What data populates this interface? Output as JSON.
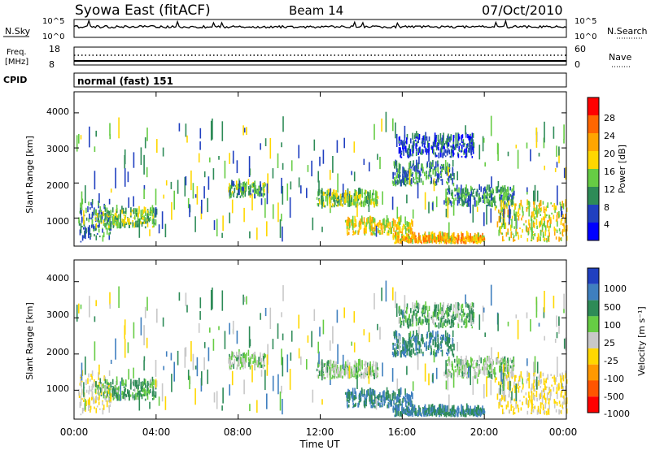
{
  "header": {
    "title": "Syowa East (fitACF)",
    "beam": "Beam 14",
    "date": "07/Oct/2010"
  },
  "noise_panel": {
    "left_label": "N.Sky",
    "right_label": "N.Search",
    "left_ticks": [
      "10^5",
      "10^0"
    ],
    "right_ticks": [
      "10^5",
      "10^0"
    ]
  },
  "freq_panel": {
    "left_label_line1": "Freq.",
    "left_label_line2": "[MHz]",
    "right_label": "Nave",
    "left_ticks": [
      "18",
      "8"
    ],
    "right_ticks": [
      "60",
      "0"
    ]
  },
  "cpid_panel": {
    "label": "CPID",
    "text": "normal (fast) 151"
  },
  "power_panel": {
    "ylabel": "Slant Range [km]",
    "yticks": [
      "4000",
      "3000",
      "2000",
      "1000"
    ],
    "colorbar_label": "Power [dB]",
    "colorbar_ticks": [
      "28",
      "24",
      "20",
      "16",
      "12",
      "8",
      "4"
    ],
    "colors": [
      "#0000ff",
      "#2040c0",
      "#2e8b57",
      "#66cc44",
      "#ffd700",
      "#ffa500",
      "#ff6600",
      "#ff0000"
    ]
  },
  "velocity_panel": {
    "ylabel": "Slant Range [km]",
    "yticks": [
      "4000",
      "3000",
      "2000",
      "1000"
    ],
    "colorbar_label": "Velocity [m s⁻¹]",
    "colorbar_ticks": [
      "1000",
      "500",
      "100",
      "25",
      "-25",
      "-100",
      "-500",
      "-1000"
    ],
    "colors": [
      "#2040c0",
      "#3f7fbf",
      "#2e8b57",
      "#66cc44",
      "#c8c8c8",
      "#ffd700",
      "#ff9900",
      "#ff5500",
      "#ff0000"
    ]
  },
  "x_axis": {
    "label": "Time UT",
    "ticks": [
      "00:00",
      "04:00",
      "08:00",
      "12:00",
      "16:00",
      "20:00",
      "00:00"
    ]
  },
  "chart_data": {
    "type": "heatmap",
    "title": "Syowa East (fitACF)",
    "xlabel": "Time UT",
    "ylabel": "Slant Range [km]",
    "xlim": [
      0,
      24
    ],
    "ylim": [
      200,
      4600
    ],
    "power_scale": [
      0,
      32
    ],
    "velocity_scale": [
      -1000,
      1000
    ],
    "scatter_regions": [
      {
        "t": [
          0.2,
          1.8
        ],
        "r": [
          300,
          1400
        ],
        "power": 10,
        "velocity": -100
      },
      {
        "t": [
          1.0,
          4.0
        ],
        "r": [
          700,
          1200
        ],
        "power": 14,
        "velocity": 25
      },
      {
        "t": [
          7.5,
          9.3
        ],
        "r": [
          1550,
          1950
        ],
        "power": 12,
        "velocity": -25
      },
      {
        "t": [
          11.8,
          14.8
        ],
        "r": [
          1300,
          1700
        ],
        "power": 14,
        "velocity": -25
      },
      {
        "t": [
          13.2,
          16.5
        ],
        "r": [
          500,
          900
        ],
        "power": 18,
        "velocity": 100
      },
      {
        "t": [
          15.5,
          20.0
        ],
        "r": [
          250,
          450
        ],
        "power": 20,
        "velocity": 100
      },
      {
        "t": [
          15.5,
          18.5
        ],
        "r": [
          1900,
          2500
        ],
        "power": 10,
        "velocity": 100
      },
      {
        "t": [
          15.8,
          19.5
        ],
        "r": [
          2700,
          3300
        ],
        "power": 6,
        "velocity": 25
      },
      {
        "t": [
          18.0,
          21.5
        ],
        "r": [
          1300,
          1800
        ],
        "power": 10,
        "velocity": -25
      },
      {
        "t": [
          20.5,
          24.0
        ],
        "r": [
          300,
          1400
        ],
        "power": 18,
        "velocity": -100
      }
    ]
  }
}
